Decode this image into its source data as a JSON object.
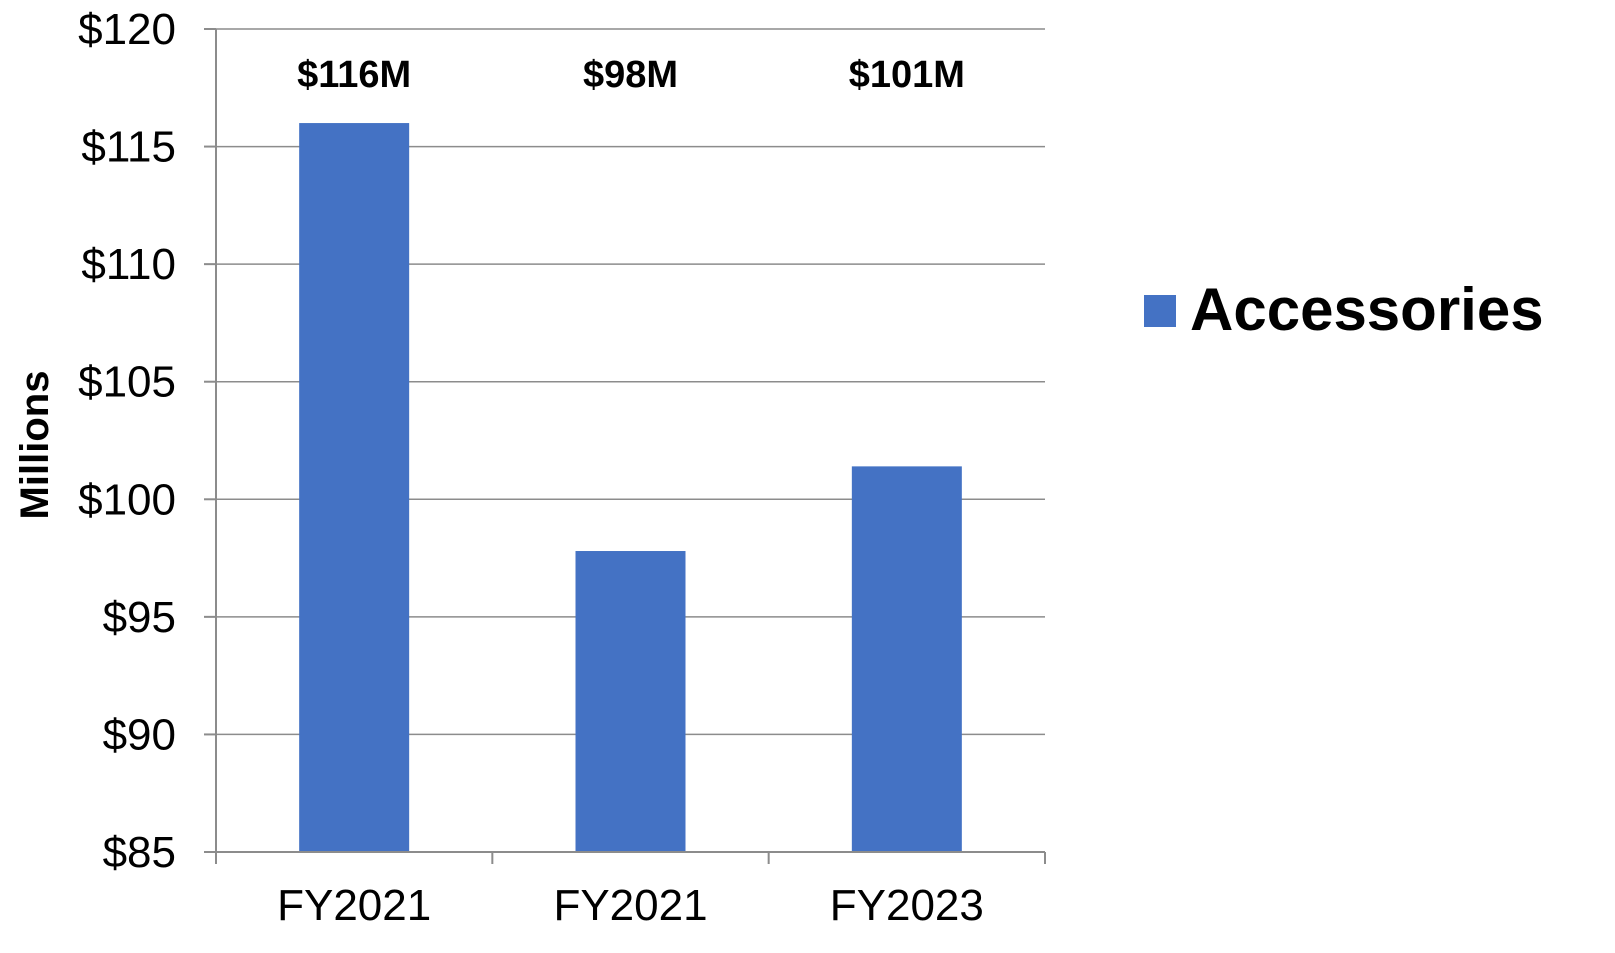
{
  "chart_data": {
    "type": "bar",
    "categories": [
      "FY2021",
      "FY2021",
      "FY2023"
    ],
    "series": [
      {
        "name": "Accessories",
        "values": [
          116,
          97.8,
          101.4
        ],
        "data_labels": [
          "$116M",
          "$98M",
          "$101M"
        ],
        "color": "#4472C4"
      }
    ],
    "yticks": [
      "$120",
      "$115",
      "$110",
      "$105",
      "$100",
      "$95",
      "$90",
      "$85"
    ],
    "ylim": [
      85,
      120
    ],
    "ylabel": "Millions",
    "grid": true,
    "legend": "right"
  }
}
